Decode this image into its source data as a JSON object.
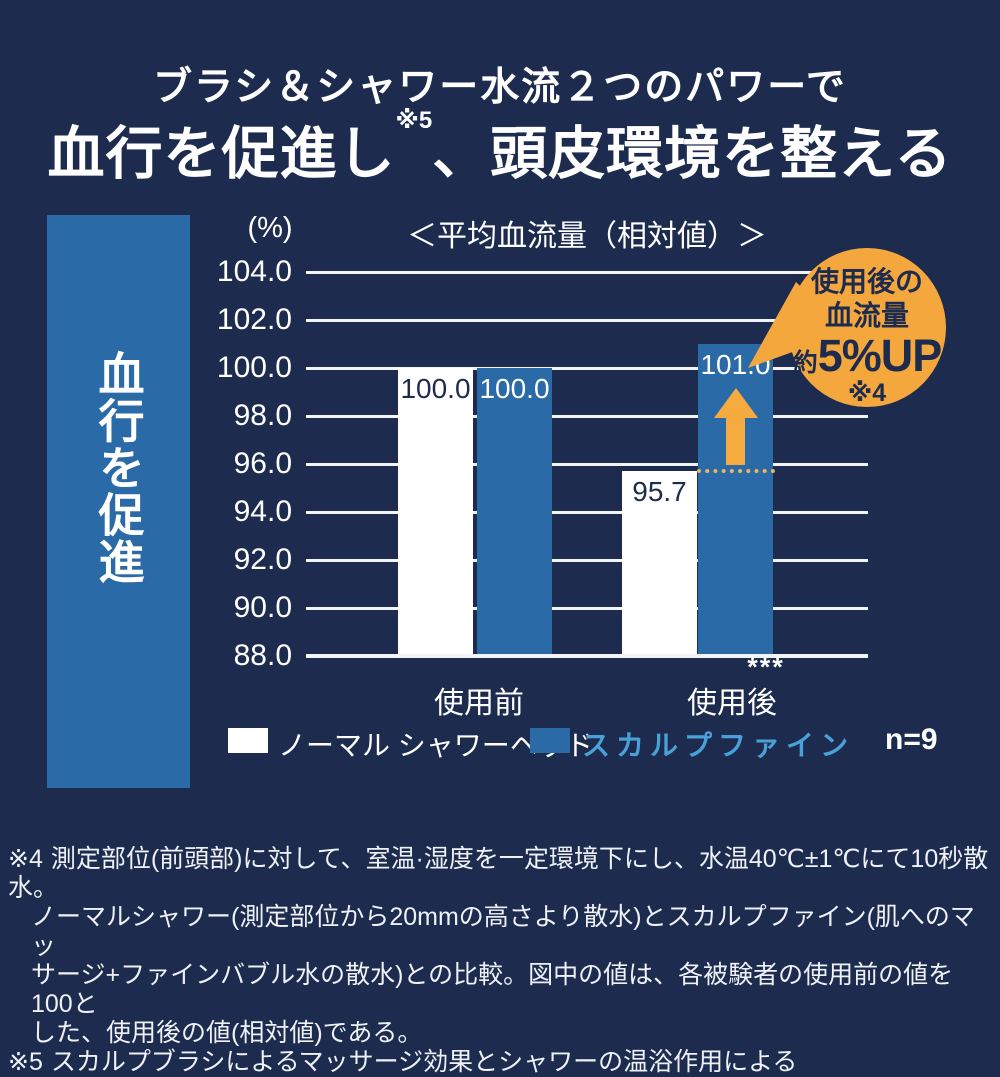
{
  "colors": {
    "background": "#1d2c4e",
    "bar_blue": "#2a6aa6",
    "bar_white": "#ffffff",
    "legend_blue_text": "#4aa0d8",
    "orange": "#f3a73c",
    "grid_white": "#f2f4f7",
    "navy_text": "#1d2c4e"
  },
  "header": {
    "line1": "ブラシ＆シャワー水流２つのパワーで",
    "line2_pre": "血行を促進し",
    "line2_sup": "※5",
    "line2_post": "、頭皮環境を整える"
  },
  "sidebar": {
    "label": "血行を促進"
  },
  "chart_data": {
    "type": "bar",
    "title": "＜平均血流量（相対値）＞",
    "unit_label": "(%)",
    "categories": [
      "使用前",
      "使用後"
    ],
    "series": [
      {
        "name": "ノーマル シャワーヘッド",
        "color": "#ffffff",
        "values": [
          100.0,
          95.7
        ]
      },
      {
        "name": "スカルプファイン",
        "color": "#2a6aa6",
        "values": [
          100.0,
          101.0
        ]
      }
    ],
    "ylim": [
      88.0,
      104.0
    ],
    "ytick_step": 2.0,
    "grid": true,
    "legend_position": "bottom",
    "significance_label": "***",
    "significance_category": "使用後",
    "sample_size": "n=9"
  },
  "annotation_bubble": {
    "line1": "使用後の",
    "line2": "血流量",
    "emph_prefix": "約",
    "emph": "5%UP",
    "note": "※4"
  },
  "footnotes": {
    "note4_marker": "※4",
    "note4_line1": "測定部位(前頭部)に対して、室温·湿度を一定環境下にし、水温40℃±1℃にて10秒散水。",
    "note4_line2": "ノーマルシャワー(測定部位から20mmの高さより散水)とスカルプファイン(肌へのマッ",
    "note4_line3": "サージ+ファインバブル水の散水)との比較。図中の値は、各被験者の使用前の値を100と",
    "note4_line4": "した、使用後の値(相対値)である。",
    "note5_marker": "※5",
    "note5_text": "スカルプブラシによるマッサージ効果とシャワーの温浴作用による"
  }
}
